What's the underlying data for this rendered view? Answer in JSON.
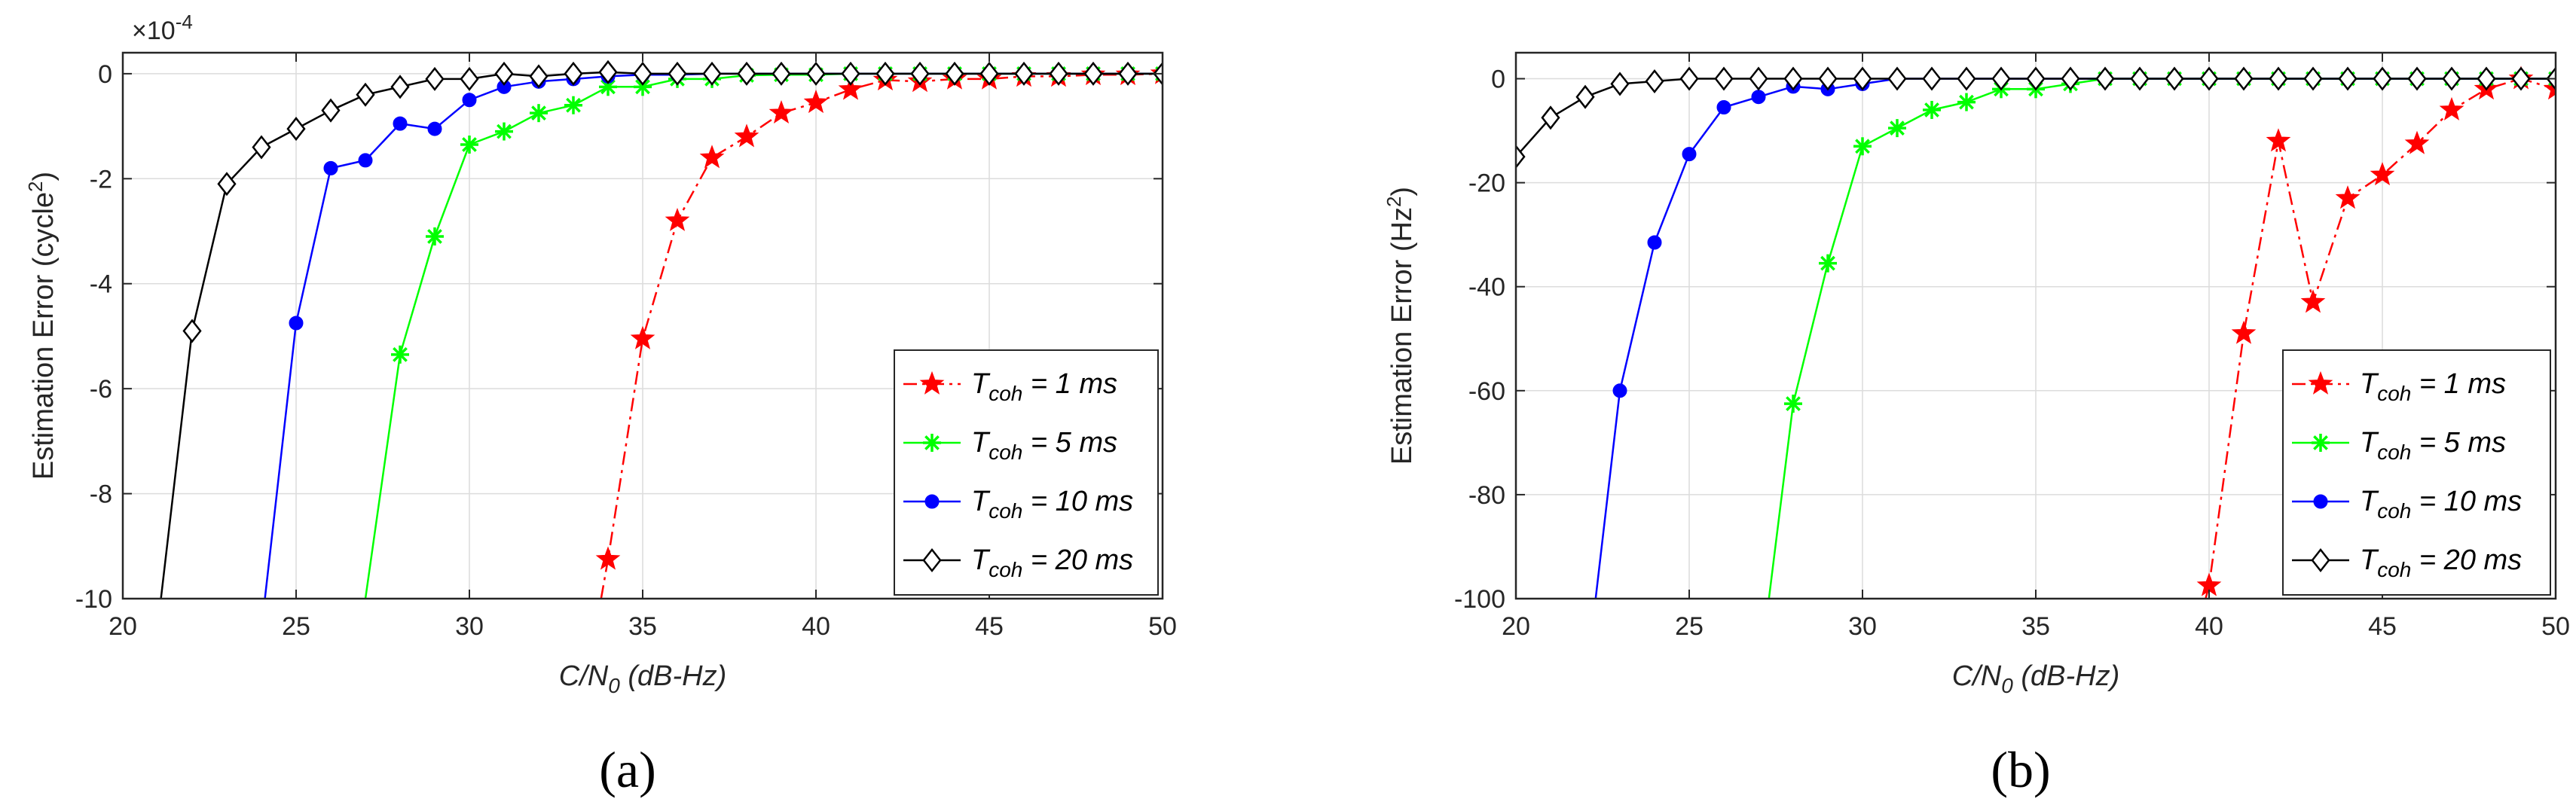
{
  "colors": {
    "red": "#ff0000",
    "green": "#00ff00",
    "blue": "#0000ff",
    "black": "#000000",
    "grid": "#dcdcdc",
    "axis": "#262626"
  },
  "legend_location": "bottom-right",
  "chart_data": [
    {
      "type": "line",
      "panel_label": "(a)",
      "xlabel": "C/N0 (dB-Hz)",
      "xlabel_parts": {
        "base": "C/N",
        "sub": "0",
        "rest": " (dB-Hz)"
      },
      "ylabel": "Estimation Error (cycle²)",
      "ylabel_parts": {
        "base": "Estimation Error (cycle",
        "sup": "2",
        "rest": ")"
      },
      "y_multiplier": "×10",
      "y_multiplier_exp": "-4",
      "xlim": [
        20,
        50
      ],
      "ylim": [
        -10,
        0.4
      ],
      "xticks": [
        20,
        25,
        30,
        35,
        40,
        45,
        50
      ],
      "yticks": [
        -10,
        -8,
        -6,
        -4,
        -2,
        0
      ],
      "grid": true,
      "series": [
        {
          "name": "Tcoh = 1 ms",
          "legend_base": "T",
          "legend_sub": "coh",
          "legend_rest": " = 1 ms",
          "color": "#ff0000",
          "marker": "pentagram",
          "line": "dashdot",
          "x": [
            33.8,
            34,
            35,
            36,
            37,
            38,
            39,
            40,
            41,
            42,
            43,
            44,
            45,
            46,
            47,
            48,
            49,
            50
          ],
          "y": [
            -10,
            -9.25,
            -5.05,
            -2.8,
            -1.6,
            -1.2,
            -0.75,
            -0.55,
            -0.3,
            -0.12,
            -0.15,
            -0.1,
            -0.1,
            -0.05,
            -0.05,
            -0.02,
            -0.02,
            0
          ]
        },
        {
          "name": "Tcoh = 5 ms",
          "legend_base": "T",
          "legend_sub": "coh",
          "legend_rest": " = 5 ms",
          "color": "#00ff00",
          "marker": "asterisk",
          "line": "solid",
          "x": [
            27,
            28,
            29,
            30,
            31,
            32,
            33,
            34,
            35,
            36,
            37,
            38,
            39,
            40,
            41,
            42,
            43,
            44,
            45,
            46,
            47,
            48,
            49,
            50
          ],
          "y": [
            -10,
            -5.35,
            -3.1,
            -1.35,
            -1.1,
            -0.75,
            -0.6,
            -0.25,
            -0.25,
            -0.1,
            -0.1,
            -0.03,
            -0.02,
            -0.02,
            0,
            0,
            0,
            0,
            0,
            0,
            0,
            0,
            0,
            0
          ]
        },
        {
          "name": "Tcoh = 10 ms",
          "legend_base": "T",
          "legend_sub": "coh",
          "legend_rest": " = 10 ms",
          "color": "#0000ff",
          "marker": "circle",
          "line": "solid",
          "x": [
            24.1,
            25,
            26,
            27,
            28,
            29,
            30,
            31,
            32,
            33,
            34,
            35,
            36,
            37,
            38,
            39,
            40,
            41,
            42,
            43,
            44,
            45,
            46,
            47,
            48,
            49,
            50
          ],
          "y": [
            -10,
            -4.75,
            -1.8,
            -1.65,
            -0.95,
            -1.05,
            -0.5,
            -0.25,
            -0.15,
            -0.1,
            -0.05,
            -0.02,
            -0.02,
            0,
            0,
            0,
            0,
            0,
            0,
            0,
            0,
            0,
            0,
            0,
            0,
            0,
            0
          ]
        },
        {
          "name": "Tcoh = 20 ms",
          "legend_base": "T",
          "legend_sub": "coh",
          "legend_rest": " = 20 ms",
          "color": "#000000",
          "marker": "diamond",
          "line": "solid",
          "x": [
            21.1,
            22,
            23,
            24,
            25,
            26,
            27,
            28,
            29,
            30,
            31,
            32,
            33,
            34,
            35,
            36,
            37,
            38,
            39,
            40,
            41,
            42,
            43,
            44,
            45,
            46,
            47,
            48,
            49,
            50
          ],
          "y": [
            -10,
            -4.9,
            -2.1,
            -1.4,
            -1.05,
            -0.7,
            -0.4,
            -0.25,
            -0.1,
            -0.1,
            0,
            -0.05,
            0,
            0.03,
            0,
            0,
            0,
            0,
            0,
            0,
            0,
            0,
            0,
            0,
            0,
            0,
            0,
            0,
            0,
            0
          ]
        }
      ]
    },
    {
      "type": "line",
      "panel_label": "(b)",
      "xlabel": "C/N0 (dB-Hz)",
      "xlabel_parts": {
        "base": "C/N",
        "sub": "0",
        "rest": " (dB-Hz)"
      },
      "ylabel": "Estimation Error (Hz²)",
      "ylabel_parts": {
        "base": "Estimation Error (Hz",
        "sup": "2",
        "rest": ")"
      },
      "y_multiplier": "",
      "y_multiplier_exp": "",
      "xlim": [
        20,
        50
      ],
      "ylim": [
        -100,
        5
      ],
      "xticks": [
        20,
        25,
        30,
        35,
        40,
        45,
        50
      ],
      "yticks": [
        -100,
        -80,
        -60,
        -40,
        -20,
        0
      ],
      "grid": true,
      "series": [
        {
          "name": "Tcoh = 1 ms",
          "legend_base": "T",
          "legend_sub": "coh",
          "legend_rest": " = 1 ms",
          "color": "#ff0000",
          "marker": "pentagram",
          "line": "dashdot",
          "x": [
            39.9,
            40,
            41,
            42,
            43,
            44,
            45,
            46,
            47,
            48,
            49,
            50
          ],
          "y": [
            -100,
            -97.5,
            -49,
            -12,
            -43,
            -23,
            -18.5,
            -12.5,
            -6,
            -2,
            0,
            -2
          ]
        },
        {
          "name": "Tcoh = 5 ms",
          "legend_base": "T",
          "legend_sub": "coh",
          "legend_rest": " = 5 ms",
          "color": "#00ff00",
          "marker": "asterisk",
          "line": "solid",
          "x": [
            27.3,
            28,
            29,
            30,
            31,
            32,
            33,
            34,
            35,
            36,
            37,
            38,
            39,
            40,
            41,
            42,
            43,
            44,
            45,
            46,
            47,
            48,
            49,
            50
          ],
          "y": [
            -100,
            -62.5,
            -35.5,
            -13,
            -9.5,
            -6,
            -4.5,
            -2,
            -2,
            -1,
            0,
            0,
            0,
            0,
            0,
            0,
            0,
            0,
            0,
            0,
            0,
            0,
            0,
            0
          ]
        },
        {
          "name": "Tcoh = 10 ms",
          "legend_base": "T",
          "legend_sub": "coh",
          "legend_rest": " = 10 ms",
          "color": "#0000ff",
          "marker": "circle",
          "line": "solid",
          "x": [
            22.3,
            23,
            24,
            25,
            26,
            27,
            28,
            29,
            30,
            31,
            32,
            33,
            34,
            35,
            36,
            37,
            38,
            39,
            40,
            41,
            42,
            43,
            44,
            45,
            46,
            47,
            48,
            49,
            50
          ],
          "y": [
            -100,
            -60,
            -31.5,
            -14.5,
            -5.5,
            -3.5,
            -1.5,
            -2,
            -1,
            0,
            0,
            0,
            0,
            0,
            0,
            0,
            0,
            0,
            0,
            0,
            0,
            0,
            0,
            0,
            0,
            0,
            0,
            0,
            0
          ]
        },
        {
          "name": "Tcoh = 20 ms",
          "legend_base": "T",
          "legend_sub": "coh",
          "legend_rest": " = 20 ms",
          "color": "#000000",
          "marker": "diamond",
          "line": "solid",
          "x": [
            20,
            21,
            22,
            23,
            24,
            25,
            26,
            27,
            28,
            29,
            30,
            31,
            32,
            33,
            34,
            35,
            36,
            37,
            38,
            39,
            40,
            41,
            42,
            43,
            44,
            45,
            46,
            47,
            48,
            49,
            50
          ],
          "y": [
            -15,
            -7.5,
            -3.5,
            -1,
            -0.5,
            0,
            0,
            0,
            0,
            0,
            0,
            0,
            0,
            0,
            0,
            0,
            0,
            0,
            0,
            0,
            0,
            0,
            0,
            0,
            0,
            0,
            0,
            0,
            0,
            0,
            0
          ]
        }
      ]
    }
  ]
}
